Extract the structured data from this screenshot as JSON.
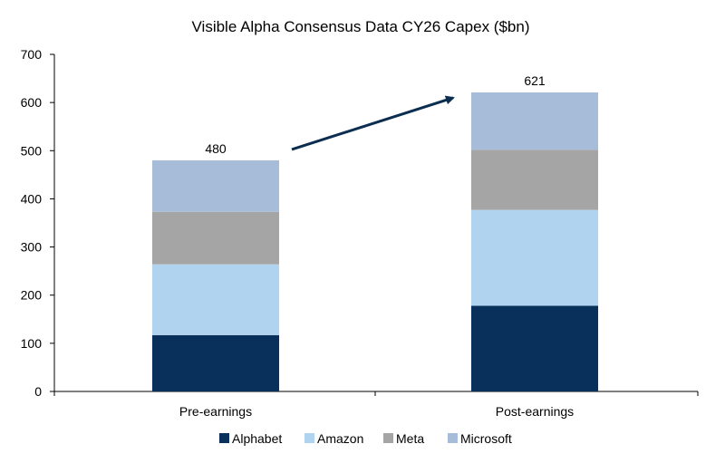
{
  "chart_data": {
    "type": "bar",
    "stacked": true,
    "title": "Visible Alpha Consensus Data CY26 Capex ($bn)",
    "xlabel": "",
    "ylabel": "",
    "ylim": [
      0,
      700
    ],
    "yticks": [
      0,
      100,
      200,
      300,
      400,
      500,
      600,
      700
    ],
    "categories": [
      "Pre-earnings",
      "Post-earnings"
    ],
    "series": [
      {
        "name": "Alphabet",
        "color": "#08305A",
        "values": [
          117,
          178
        ]
      },
      {
        "name": "Amazon",
        "color": "#B0D4EF",
        "values": [
          147,
          199
        ]
      },
      {
        "name": "Meta",
        "color": "#A5A5A5",
        "values": [
          109,
          125
        ]
      },
      {
        "name": "Microsoft",
        "color": "#A7BCD8",
        "values": [
          107,
          119
        ]
      }
    ],
    "totals": [
      "480",
      "621"
    ],
    "annotation": {
      "type": "arrow",
      "from": "Pre-earnings",
      "to": "Post-earnings",
      "color": "#0B2E50"
    },
    "legend_position": "bottom-center",
    "grid": false
  }
}
